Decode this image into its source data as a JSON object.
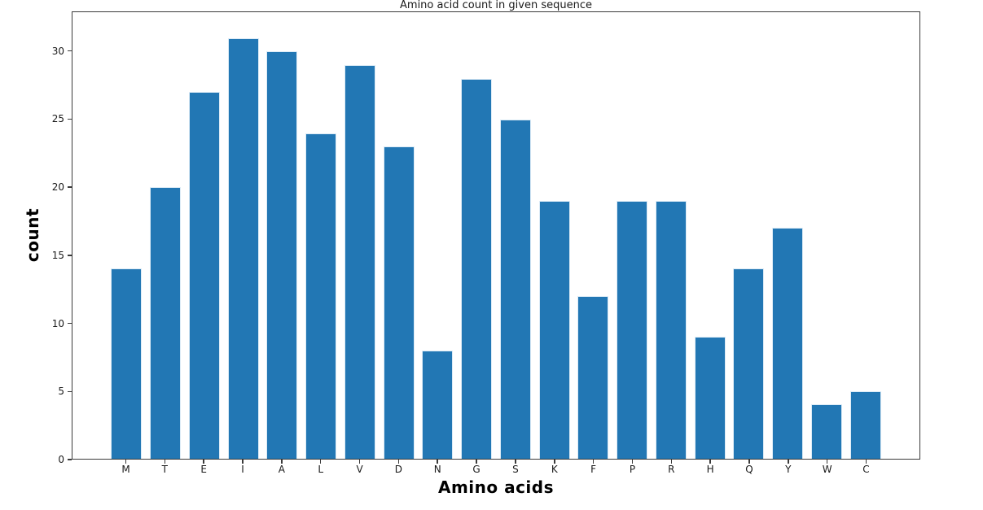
{
  "chart_data": {
    "type": "bar",
    "title": "Amino acid count in given sequence",
    "xlabel": "Amino acids",
    "ylabel": "count",
    "categories": [
      "M",
      "T",
      "E",
      "I",
      "A",
      "L",
      "V",
      "D",
      "N",
      "G",
      "S",
      "K",
      "F",
      "P",
      "R",
      "H",
      "Q",
      "Y",
      "W",
      "C"
    ],
    "values": [
      14,
      20,
      27,
      31,
      30,
      24,
      29,
      23,
      8,
      28,
      25,
      19,
      12,
      19,
      19,
      9,
      14,
      17,
      4,
      5
    ],
    "yticks": [
      0,
      5,
      10,
      15,
      20,
      25,
      30
    ],
    "ylim": [
      0,
      32.9
    ],
    "bar_color": "#2277b4",
    "bar_edge_color": "#dcebf6",
    "axis_color": "#3a3a3a",
    "grid": false,
    "legend": null
  }
}
